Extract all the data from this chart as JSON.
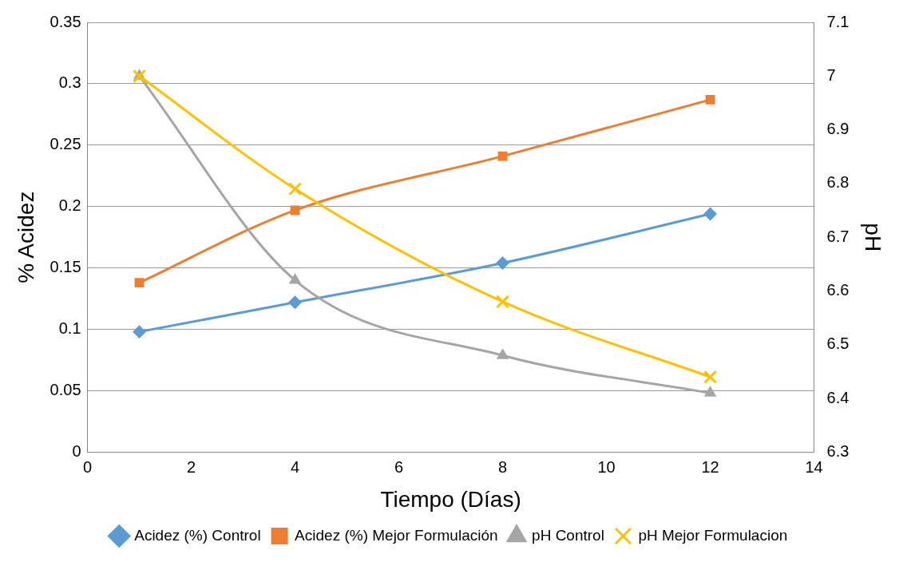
{
  "chart_data": {
    "type": "line",
    "xlabel": "Tiempo (Días)",
    "ylabel": "% Acidez",
    "y2label": "pH",
    "x": [
      1,
      4,
      8,
      12
    ],
    "series": [
      {
        "name": "Acidez (%) Control",
        "color": "#5b9bd5",
        "marker": "diamond",
        "values": [
          0.098,
          0.122,
          0.154,
          0.194
        ]
      },
      {
        "name": "Acidez (%) Mejor Formulación",
        "color": "#ed7d31",
        "marker": "square",
        "values": [
          0.138,
          0.197,
          0.241,
          0.287
        ]
      },
      {
        "name": "pH Control",
        "color": "#a5a5a5",
        "marker": "triangle",
        "axis": "y2",
        "values": [
          7.0,
          6.62,
          6.48,
          6.41
        ]
      },
      {
        "name": "pH Mejor Formulacion",
        "color": "#ffc000",
        "marker": "cross",
        "axis": "y2",
        "values": [
          7.0,
          6.79,
          6.58,
          6.44
        ]
      }
    ],
    "xlim": [
      0,
      14
    ],
    "xticks": [
      0,
      2,
      4,
      6,
      8,
      10,
      12,
      14
    ],
    "ylim": [
      0,
      0.35
    ],
    "yticks": [
      0,
      0.05,
      0.1,
      0.15,
      0.2,
      0.25,
      0.3,
      0.35
    ],
    "y2lim": [
      6.3,
      7.1
    ],
    "y2ticks": [
      6.3,
      6.4,
      6.5,
      6.6,
      6.7,
      6.8,
      6.9,
      7,
      7.1
    ],
    "grid": "y",
    "legend": "bottom",
    "line_style": "solid"
  }
}
